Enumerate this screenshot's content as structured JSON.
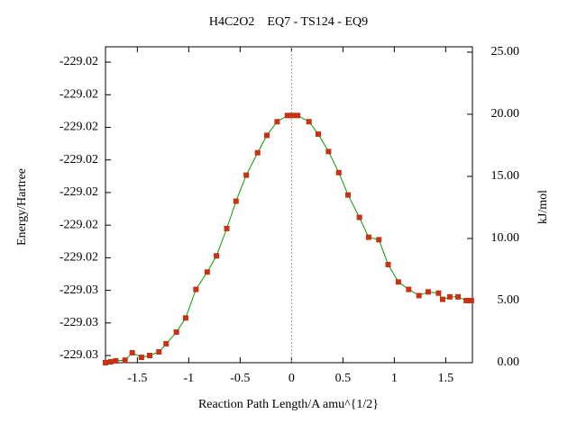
{
  "chart_data": {
    "type": "line",
    "title": "H4C2O2    EQ7 - TS124 - EQ9",
    "x_label": "Reaction Path Length/A amu^{1/2}",
    "y_label": "Energy/Hartree",
    "y2_label": "kJ/mol",
    "xlim": [
      -1.81,
      1.76
    ],
    "xticks": [
      -1.5,
      -1,
      -0.5,
      0,
      0.5,
      1,
      1.5
    ],
    "ylim": [
      -229.02772,
      -229.01803
    ],
    "yticks": [
      {
        "value": -229.0275,
        "label": "-229.03"
      },
      {
        "value": -229.0265,
        "label": "-229.03"
      },
      {
        "value": -229.0255,
        "label": "-229.03"
      },
      {
        "value": -229.0245,
        "label": "-229.02"
      },
      {
        "value": -229.0235,
        "label": "-229.02"
      },
      {
        "value": -229.0225,
        "label": "-229.02"
      },
      {
        "value": -229.0215,
        "label": "-229.02"
      },
      {
        "value": -229.0205,
        "label": "-229.02"
      },
      {
        "value": -229.0195,
        "label": "-229.02"
      },
      {
        "value": -229.0185,
        "label": "-229.02"
      }
    ],
    "y2lim": [
      0,
      25.43
    ],
    "y2ticks": [
      {
        "value": 0,
        "label": "0.00"
      },
      {
        "value": 5,
        "label": "5.00"
      },
      {
        "value": 10,
        "label": "10.00"
      },
      {
        "value": 15,
        "label": "15.00"
      },
      {
        "value": 20,
        "label": "20.00"
      },
      {
        "value": 25,
        "label": "25.00"
      }
    ],
    "reference_line_x": 0,
    "line_color": "#00a000",
    "marker_color": "#c83214",
    "x": [
      -1.81,
      -1.76,
      -1.71,
      -1.62,
      -1.55,
      -1.46,
      -1.38,
      -1.29,
      -1.22,
      -1.12,
      -1.03,
      -0.93,
      -0.82,
      -0.73,
      -0.63,
      -0.54,
      -0.44,
      -0.33,
      -0.24,
      -0.14,
      -0.04,
      0.01,
      0.06,
      0.17,
      0.26,
      0.36,
      0.46,
      0.55,
      0.66,
      0.75,
      0.85,
      0.94,
      1.04,
      1.14,
      1.24,
      1.33,
      1.43,
      1.47,
      1.54,
      1.62,
      1.7,
      1.75
    ],
    "series": [
      {
        "axis": "y2",
        "values": [
          0.0,
          0.07,
          0.15,
          0.2,
          0.8,
          0.43,
          0.58,
          0.87,
          1.52,
          2.46,
          3.6,
          5.9,
          7.3,
          8.6,
          10.8,
          13.0,
          15.1,
          16.9,
          18.3,
          19.4,
          19.9,
          19.9,
          19.9,
          19.4,
          18.4,
          17.0,
          15.3,
          13.5,
          11.7,
          10.1,
          9.9,
          7.9,
          6.5,
          5.9,
          5.4,
          5.7,
          5.6,
          5.1,
          5.3,
          5.3,
          5.0,
          5.0
        ]
      }
    ]
  }
}
